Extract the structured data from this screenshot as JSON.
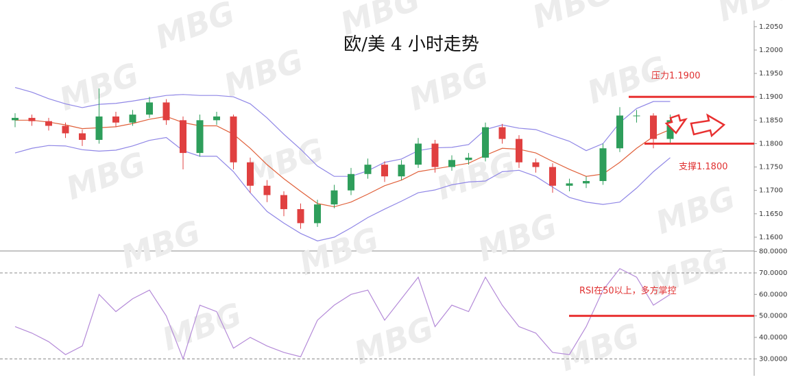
{
  "chart_data": [
    {
      "type": "candlestick",
      "title": "欧/美 4 小时走势",
      "watermark": "MBG",
      "up_color": "#2e9e5b",
      "down_color": "#e04040",
      "open": [
        1.185,
        1.1855,
        1.1848,
        1.1838,
        1.1822,
        1.1808,
        1.1858,
        1.1845,
        1.1862,
        1.1888,
        1.185,
        1.178,
        1.185,
        1.1858,
        1.176,
        1.171,
        1.169,
        1.166,
        1.163,
        1.167,
        1.17,
        1.1735,
        1.1755,
        1.173,
        1.1755,
        1.18,
        1.175,
        1.1765,
        1.177,
        1.1835,
        1.181,
        1.176,
        1.175,
        1.171,
        1.1715,
        1.172,
        1.179,
        1.186,
        1.186,
        1.181
      ],
      "high": [
        1.1865,
        1.1862,
        1.1855,
        1.1845,
        1.183,
        1.1918,
        1.1868,
        1.1872,
        1.19,
        1.1895,
        1.1858,
        1.1862,
        1.1868,
        1.1862,
        1.177,
        1.1722,
        1.1698,
        1.1672,
        1.168,
        1.1712,
        1.1748,
        1.1768,
        1.1762,
        1.1765,
        1.1812,
        1.1808,
        1.1775,
        1.178,
        1.1845,
        1.1842,
        1.1818,
        1.1768,
        1.1758,
        1.1725,
        1.173,
        1.18,
        1.1878,
        1.1872,
        1.1865,
        1.1862
      ],
      "low": [
        1.1835,
        1.1838,
        1.1828,
        1.1812,
        1.1795,
        1.18,
        1.1835,
        1.1838,
        1.1855,
        1.184,
        1.1745,
        1.1772,
        1.184,
        1.1745,
        1.1695,
        1.1675,
        1.1645,
        1.1618,
        1.1622,
        1.1662,
        1.169,
        1.1725,
        1.1718,
        1.1722,
        1.1748,
        1.1738,
        1.1742,
        1.1755,
        1.1762,
        1.18,
        1.1748,
        1.1738,
        1.1695,
        1.1698,
        1.1705,
        1.1712,
        1.1782,
        1.1845,
        1.179,
        1.1802
      ],
      "close": [
        1.1855,
        1.1848,
        1.1838,
        1.1822,
        1.1808,
        1.1858,
        1.1845,
        1.1862,
        1.1888,
        1.185,
        1.178,
        1.185,
        1.1858,
        1.176,
        1.171,
        1.169,
        1.166,
        1.163,
        1.167,
        1.17,
        1.1735,
        1.1755,
        1.173,
        1.1755,
        1.18,
        1.175,
        1.1765,
        1.177,
        1.1835,
        1.181,
        1.176,
        1.175,
        1.171,
        1.1715,
        1.172,
        1.179,
        1.186,
        1.186,
        1.181,
        1.185
      ],
      "series": [
        {
          "color": "#8f86e6",
          "values": [
            1.192,
            1.191,
            1.1896,
            1.1885,
            1.1877,
            1.1884,
            1.1886,
            1.1891,
            1.1897,
            1.1903,
            1.1905,
            1.1903,
            1.1903,
            1.19,
            1.1885,
            1.1855,
            1.182,
            1.1788,
            1.1752,
            1.173,
            1.173,
            1.1742,
            1.176,
            1.1767,
            1.1785,
            1.1791,
            1.1792,
            1.1798,
            1.183,
            1.184,
            1.1833,
            1.183,
            1.1817,
            1.1805,
            1.1785,
            1.18,
            1.1845,
            1.1875,
            1.189,
            1.189
          ]
        },
        {
          "color": "#e0603a",
          "values": [
            1.185,
            1.185,
            1.1846,
            1.184,
            1.1832,
            1.1834,
            1.1836,
            1.1843,
            1.1852,
            1.1858,
            1.1845,
            1.1838,
            1.1838,
            1.182,
            1.179,
            1.1755,
            1.1725,
            1.1698,
            1.1672,
            1.1665,
            1.1675,
            1.1692,
            1.171,
            1.1722,
            1.174,
            1.1746,
            1.1752,
            1.1758,
            1.1775,
            1.179,
            1.1788,
            1.178,
            1.1762,
            1.1745,
            1.173,
            1.1735,
            1.176,
            1.179,
            1.1815,
            1.183
          ]
        },
        {
          "color": "#8f86e6",
          "values": [
            1.178,
            1.179,
            1.1796,
            1.1795,
            1.1787,
            1.1784,
            1.1786,
            1.1795,
            1.1807,
            1.1813,
            1.1785,
            1.1773,
            1.1773,
            1.174,
            1.1695,
            1.1655,
            1.163,
            1.1608,
            1.1592,
            1.16,
            1.162,
            1.1642,
            1.166,
            1.1677,
            1.1695,
            1.1701,
            1.1712,
            1.1718,
            1.172,
            1.174,
            1.1743,
            1.173,
            1.1707,
            1.1685,
            1.1675,
            1.167,
            1.1675,
            1.1705,
            1.174,
            1.177
          ]
        }
      ],
      "ylim": [
        1.1572,
        1.2063
      ],
      "yticks": [
        {
          "value": 1.16,
          "label": "1.1600"
        },
        {
          "value": 1.165,
          "label": "1.1650"
        },
        {
          "value": 1.17,
          "label": "1.1700"
        },
        {
          "value": 1.175,
          "label": "1.1750"
        },
        {
          "value": 1.18,
          "label": "1.1800"
        },
        {
          "value": 1.185,
          "label": "1.1850"
        },
        {
          "value": 1.19,
          "label": "1.1900"
        },
        {
          "value": 1.195,
          "label": "1.1950"
        },
        {
          "value": 1.2,
          "label": "1.2000"
        },
        {
          "value": 1.205,
          "label": "1.2050"
        }
      ],
      "levels": [
        {
          "value": 1.19,
          "label": "压力1.1900",
          "color": "#e83030"
        },
        {
          "value": 1.18,
          "label": "支撑1.1800",
          "color": "#e83030"
        }
      ]
    },
    {
      "type": "line",
      "color": "#b48ad8",
      "values": [
        45,
        42,
        38,
        32,
        36,
        60,
        52,
        58,
        62,
        50,
        30,
        55,
        52,
        35,
        40,
        36,
        33,
        31,
        48,
        55,
        60,
        62,
        48,
        58,
        68,
        45,
        55,
        52,
        68,
        55,
        45,
        42,
        33,
        32,
        45,
        62,
        72,
        68,
        55,
        60
      ],
      "ylim": [
        24.7,
        80.2
      ],
      "yticks": [
        {
          "value": 30,
          "label": "30.0000"
        },
        {
          "value": 40,
          "label": "40.0000"
        },
        {
          "value": 50,
          "label": "50.0000"
        },
        {
          "value": 60,
          "label": "60.0000"
        },
        {
          "value": 70,
          "label": "70.0000"
        },
        {
          "value": 80,
          "label": "80.0000"
        }
      ],
      "hlines": [
        70,
        30
      ],
      "levels": [
        {
          "value": 50,
          "label": "RSI在50以上，多方掌控",
          "color": "#e83030"
        }
      ]
    }
  ]
}
